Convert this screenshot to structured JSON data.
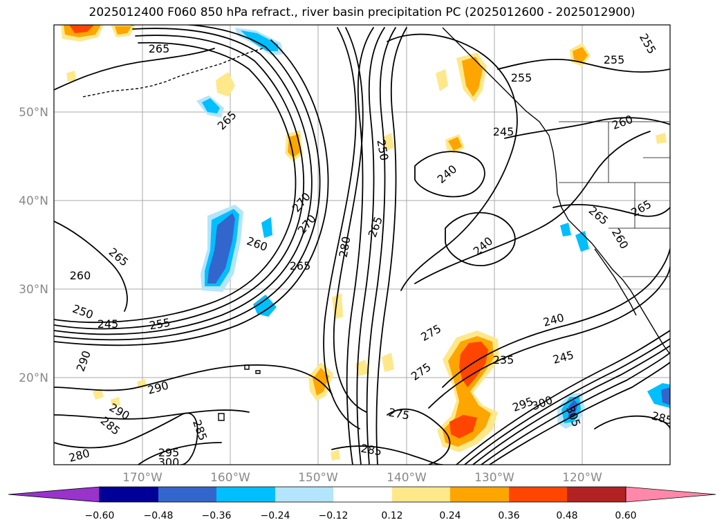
{
  "title": "2025012400 F060 850 hPa refract., river basin precipitation PC (2025012600 - 2025012900)",
  "lat_labels": [
    "50°N",
    "40°N",
    "30°N",
    "20°N"
  ],
  "lon_labels": [
    "170°W",
    "160°W",
    "150°W",
    "140°W",
    "130°W",
    "120°W"
  ],
  "colorbar": {
    "colors": [
      "#9933cc",
      "#000099",
      "#3366cc",
      "#00bfff",
      "#b3e5fc",
      "#ffffff",
      "#ffe88a",
      "#ffa500",
      "#ff4500",
      "#b22222",
      "#ff88aa"
    ],
    "ticks": [
      "−0.60",
      "−0.48",
      "−0.36",
      "−0.24",
      "−0.12",
      "0.12",
      "0.24",
      "0.36",
      "0.48",
      "0.60"
    ]
  },
  "contour_labels": [
    "265",
    "255",
    "255",
    "255",
    "265",
    "245",
    "260",
    "250",
    "240",
    "265",
    "270",
    "270",
    "260",
    "265",
    "280",
    "265",
    "240",
    "265",
    "260",
    "265",
    "260",
    "250",
    "245",
    "255",
    "275",
    "240",
    "290",
    "275",
    "235",
    "245",
    "290",
    "290",
    "285",
    "285",
    "295",
    "300",
    "280",
    "275",
    "285",
    "300",
    "295",
    "305",
    "285"
  ],
  "shading_colors": {
    "neg_light": "#b3e5fc",
    "neg_mid": "#00bfff",
    "neg_strong": "#3366cc",
    "pos_light": "#ffe88a",
    "pos_mid": "#ffa500",
    "pos_strong": "#ff4500"
  }
}
